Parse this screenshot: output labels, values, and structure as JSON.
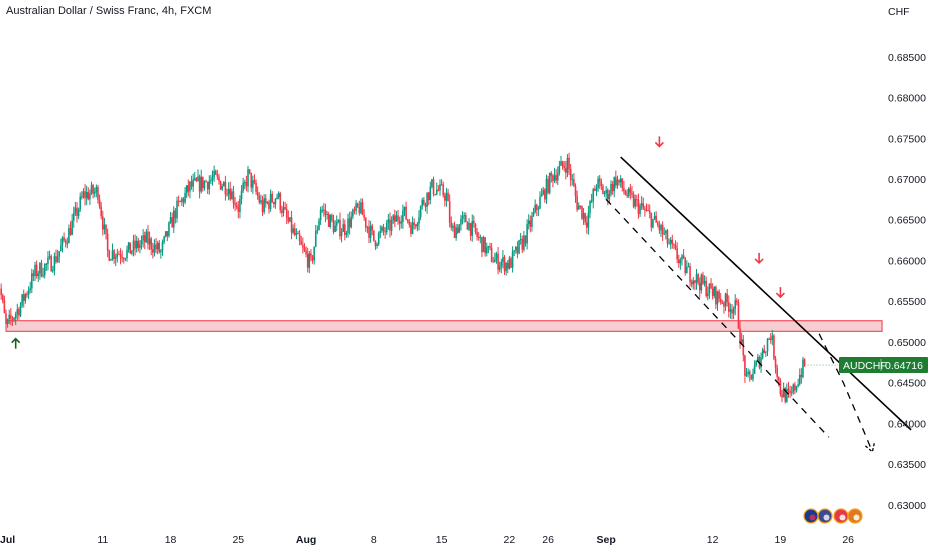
{
  "header": {
    "title": "Australian Dollar / Swiss Franc, 4h, FXCM"
  },
  "price_axis": {
    "currency": "CHF"
  },
  "last_price": {
    "symbol": "AUDCHF",
    "value": "0.64716"
  },
  "colors": {
    "up": "#089981",
    "down": "#f23645",
    "zone_fill": "#f4c4c9",
    "zone_stroke": "#f23645",
    "arrow_up": "#1b5e20",
    "arrow_down": "#f23645",
    "tag_bg": "#1e7d32"
  },
  "icons": [
    "australia-flag-icon",
    "events-icon",
    "switzerland-flag-icon",
    "events-icon"
  ],
  "chart_data": {
    "type": "candlestick",
    "title": "Australian Dollar / Swiss Franc, 4h, FXCM",
    "x_ticks": [
      {
        "label": "Jul",
        "day": 1,
        "bold": true
      },
      {
        "label": "11",
        "day": 11
      },
      {
        "label": "18",
        "day": 18
      },
      {
        "label": "25",
        "day": 25
      },
      {
        "label": "Aug",
        "day": 32,
        "bold": true
      },
      {
        "label": "8",
        "day": 39
      },
      {
        "label": "15",
        "day": 46
      },
      {
        "label": "22",
        "day": 53
      },
      {
        "label": "26",
        "day": 57
      },
      {
        "label": "Sep",
        "day": 63,
        "bold": true
      },
      {
        "label": "12",
        "day": 74
      },
      {
        "label": "19",
        "day": 81
      },
      {
        "label": "26",
        "day": 88
      }
    ],
    "y_ticks": [
      "0.68500",
      "0.68000",
      "0.67500",
      "0.67000",
      "0.66500",
      "0.66000",
      "0.65500",
      "0.65000",
      "0.64500",
      "0.64000",
      "0.63500",
      "0.63000"
    ],
    "ylim": [
      0.6285,
      0.691
    ],
    "price_path": [
      [
        0.0,
        0.6595
      ],
      [
        1.0,
        0.6518
      ],
      [
        2.5,
        0.6545
      ],
      [
        4.0,
        0.6585
      ],
      [
        6.0,
        0.66
      ],
      [
        7.5,
        0.6635
      ],
      [
        9.0,
        0.668
      ],
      [
        10.5,
        0.6685
      ],
      [
        11.5,
        0.661
      ],
      [
        13.5,
        0.661
      ],
      [
        15.5,
        0.6625
      ],
      [
        17.0,
        0.661
      ],
      [
        18.5,
        0.666
      ],
      [
        20.0,
        0.669
      ],
      [
        22.5,
        0.67
      ],
      [
        24.0,
        0.669
      ],
      [
        25.0,
        0.6665
      ],
      [
        26.0,
        0.6705
      ],
      [
        27.5,
        0.6665
      ],
      [
        29.0,
        0.668
      ],
      [
        30.0,
        0.665
      ],
      [
        31.5,
        0.6615
      ],
      [
        32.5,
        0.6595
      ],
      [
        33.5,
        0.6665
      ],
      [
        35.0,
        0.664
      ],
      [
        36.0,
        0.664
      ],
      [
        37.5,
        0.6665
      ],
      [
        39.0,
        0.6625
      ],
      [
        40.5,
        0.664
      ],
      [
        42.0,
        0.666
      ],
      [
        43.0,
        0.664
      ],
      [
        44.0,
        0.667
      ],
      [
        45.0,
        0.669
      ],
      [
        46.5,
        0.668
      ],
      [
        47.0,
        0.6635
      ],
      [
        48.5,
        0.665
      ],
      [
        50.5,
        0.6615
      ],
      [
        51.5,
        0.66
      ],
      [
        53.0,
        0.6595
      ],
      [
        54.5,
        0.6625
      ],
      [
        56.0,
        0.667
      ],
      [
        57.5,
        0.6705
      ],
      [
        59.0,
        0.672
      ],
      [
        60.0,
        0.667
      ],
      [
        61.0,
        0.665
      ],
      [
        62.0,
        0.6695
      ],
      [
        63.0,
        0.668
      ],
      [
        64.0,
        0.67
      ],
      [
        65.5,
        0.6675
      ],
      [
        67.0,
        0.666
      ],
      [
        68.5,
        0.664
      ],
      [
        70.0,
        0.661
      ],
      [
        71.5,
        0.6585
      ],
      [
        73.0,
        0.657
      ],
      [
        74.5,
        0.6555
      ],
      [
        76.5,
        0.654
      ],
      [
        77.5,
        0.645
      ],
      [
        78.5,
        0.647
      ],
      [
        80.0,
        0.651
      ],
      [
        81.0,
        0.644
      ],
      [
        82.0,
        0.643
      ],
      [
        83.0,
        0.646
      ],
      [
        83.5,
        0.6472
      ]
    ],
    "support_zone": {
      "low": 0.6513,
      "high": 0.6526,
      "from_day": 1,
      "to_day": 91.5
    },
    "trendline": {
      "from": [
        64.5,
        0.6727
      ],
      "to": [
        94.5,
        0.6392
      ],
      "style": "solid"
    },
    "channel_line": {
      "from": [
        63.0,
        0.6675
      ],
      "to": [
        86.0,
        0.6383
      ],
      "style": "dashed"
    },
    "projection": [
      [
        85.0,
        0.651
      ],
      [
        87.5,
        0.645
      ],
      [
        89.0,
        0.6408
      ],
      [
        90.5,
        0.6365
      ]
    ],
    "arrows": [
      {
        "day": 2.0,
        "price": 0.6504,
        "dir": "up"
      },
      {
        "day": 68.5,
        "price": 0.674,
        "dir": "down"
      },
      {
        "day": 78.8,
        "price": 0.6597,
        "dir": "down"
      },
      {
        "day": 81.0,
        "price": 0.6555,
        "dir": "down"
      }
    ]
  }
}
